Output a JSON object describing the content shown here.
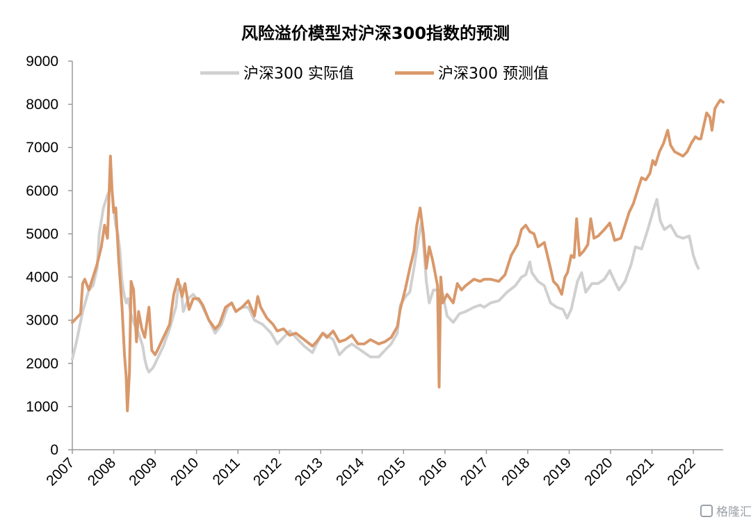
{
  "chart_data": {
    "type": "line",
    "title": "风险溢价模型对沪深300指数的预测",
    "xlabel": "",
    "ylabel": "",
    "x_ticks": [
      "2007",
      "2008",
      "2009",
      "2010",
      "2011",
      "2012",
      "2013",
      "2014",
      "2015",
      "2016",
      "2017",
      "2018",
      "2019",
      "2020",
      "2021",
      "2022"
    ],
    "y_ticks": [
      "0",
      "1000",
      "2000",
      "3000",
      "4000",
      "5000",
      "6000",
      "7000",
      "8000",
      "9000"
    ],
    "ylim": [
      0,
      9000
    ],
    "xlim": [
      2007.0,
      2022.72
    ],
    "grid": false,
    "legend_position": "top",
    "series": [
      {
        "name": "沪深300 实际值",
        "color": "#d0d0d0",
        "points": [
          [
            2007.0,
            2100
          ],
          [
            2007.1,
            2500
          ],
          [
            2007.25,
            3200
          ],
          [
            2007.4,
            3700
          ],
          [
            2007.5,
            3800
          ],
          [
            2007.6,
            4200
          ],
          [
            2007.65,
            5000
          ],
          [
            2007.75,
            5600
          ],
          [
            2007.85,
            5900
          ],
          [
            2007.95,
            6100
          ],
          [
            2008.0,
            5600
          ],
          [
            2008.05,
            5200
          ],
          [
            2008.1,
            5000
          ],
          [
            2008.15,
            4600
          ],
          [
            2008.2,
            3900
          ],
          [
            2008.25,
            3600
          ],
          [
            2008.3,
            3400
          ],
          [
            2008.35,
            3500
          ],
          [
            2008.4,
            3200
          ],
          [
            2008.5,
            2900
          ],
          [
            2008.6,
            2700
          ],
          [
            2008.7,
            2400
          ],
          [
            2008.75,
            2100
          ],
          [
            2008.8,
            1900
          ],
          [
            2008.85,
            1800
          ],
          [
            2008.95,
            1900
          ],
          [
            2009.05,
            2100
          ],
          [
            2009.2,
            2400
          ],
          [
            2009.35,
            2800
          ],
          [
            2009.5,
            3300
          ],
          [
            2009.55,
            3700
          ],
          [
            2009.62,
            3800
          ],
          [
            2009.68,
            3200
          ],
          [
            2009.8,
            3500
          ],
          [
            2009.92,
            3600
          ],
          [
            2010.0,
            3500
          ],
          [
            2010.1,
            3400
          ],
          [
            2010.3,
            3000
          ],
          [
            2010.45,
            2700
          ],
          [
            2010.6,
            2900
          ],
          [
            2010.75,
            3300
          ],
          [
            2010.85,
            3400
          ],
          [
            2010.95,
            3200
          ],
          [
            2011.1,
            3300
          ],
          [
            2011.25,
            3300
          ],
          [
            2011.4,
            3000
          ],
          [
            2011.6,
            2900
          ],
          [
            2011.8,
            2700
          ],
          [
            2011.95,
            2450
          ],
          [
            2012.1,
            2600
          ],
          [
            2012.25,
            2750
          ],
          [
            2012.4,
            2600
          ],
          [
            2012.6,
            2400
          ],
          [
            2012.8,
            2250
          ],
          [
            2012.9,
            2450
          ],
          [
            2013.05,
            2700
          ],
          [
            2013.15,
            2650
          ],
          [
            2013.3,
            2550
          ],
          [
            2013.45,
            2200
          ],
          [
            2013.6,
            2350
          ],
          [
            2013.75,
            2450
          ],
          [
            2013.9,
            2350
          ],
          [
            2014.05,
            2250
          ],
          [
            2014.2,
            2150
          ],
          [
            2014.4,
            2150
          ],
          [
            2014.55,
            2300
          ],
          [
            2014.7,
            2450
          ],
          [
            2014.85,
            2700
          ],
          [
            2014.92,
            3350
          ],
          [
            2015.05,
            3550
          ],
          [
            2015.15,
            3650
          ],
          [
            2015.25,
            4200
          ],
          [
            2015.38,
            5000
          ],
          [
            2015.44,
            5300
          ],
          [
            2015.48,
            4800
          ],
          [
            2015.55,
            3900
          ],
          [
            2015.62,
            3400
          ],
          [
            2015.72,
            3700
          ],
          [
            2015.85,
            3700
          ],
          [
            2015.95,
            3600
          ],
          [
            2016.05,
            3100
          ],
          [
            2016.2,
            2950
          ],
          [
            2016.35,
            3150
          ],
          [
            2016.5,
            3200
          ],
          [
            2016.7,
            3300
          ],
          [
            2016.85,
            3350
          ],
          [
            2016.95,
            3300
          ],
          [
            2017.1,
            3400
          ],
          [
            2017.3,
            3450
          ],
          [
            2017.5,
            3650
          ],
          [
            2017.7,
            3800
          ],
          [
            2017.85,
            4000
          ],
          [
            2017.95,
            4050
          ],
          [
            2018.05,
            4350
          ],
          [
            2018.1,
            4100
          ],
          [
            2018.25,
            3900
          ],
          [
            2018.4,
            3800
          ],
          [
            2018.55,
            3400
          ],
          [
            2018.7,
            3300
          ],
          [
            2018.85,
            3250
          ],
          [
            2018.95,
            3050
          ],
          [
            2019.05,
            3250
          ],
          [
            2019.2,
            3900
          ],
          [
            2019.3,
            4100
          ],
          [
            2019.4,
            3650
          ],
          [
            2019.55,
            3850
          ],
          [
            2019.7,
            3850
          ],
          [
            2019.85,
            3950
          ],
          [
            2019.98,
            4150
          ],
          [
            2020.1,
            3900
          ],
          [
            2020.2,
            3700
          ],
          [
            2020.35,
            3900
          ],
          [
            2020.5,
            4300
          ],
          [
            2020.6,
            4700
          ],
          [
            2020.75,
            4650
          ],
          [
            2020.9,
            5100
          ],
          [
            2021.05,
            5600
          ],
          [
            2021.12,
            5800
          ],
          [
            2021.2,
            5300
          ],
          [
            2021.3,
            5100
          ],
          [
            2021.45,
            5200
          ],
          [
            2021.6,
            4950
          ],
          [
            2021.75,
            4900
          ],
          [
            2021.9,
            4950
          ],
          [
            2022.0,
            4500
          ],
          [
            2022.07,
            4300
          ],
          [
            2022.12,
            4200
          ]
        ]
      },
      {
        "name": "沪深300 预测值",
        "color": "#d9986a",
        "points": [
          [
            2007.0,
            2950
          ],
          [
            2007.1,
            3050
          ],
          [
            2007.2,
            3150
          ],
          [
            2007.25,
            3850
          ],
          [
            2007.3,
            3950
          ],
          [
            2007.4,
            3700
          ],
          [
            2007.5,
            4000
          ],
          [
            2007.6,
            4300
          ],
          [
            2007.7,
            4700
          ],
          [
            2007.78,
            5200
          ],
          [
            2007.85,
            4900
          ],
          [
            2007.92,
            6800
          ],
          [
            2007.96,
            6000
          ],
          [
            2008.0,
            5500
          ],
          [
            2008.05,
            5600
          ],
          [
            2008.12,
            4400
          ],
          [
            2008.2,
            3300
          ],
          [
            2008.26,
            2200
          ],
          [
            2008.3,
            1700
          ],
          [
            2008.33,
            900
          ],
          [
            2008.38,
            1800
          ],
          [
            2008.42,
            3900
          ],
          [
            2008.48,
            3700
          ],
          [
            2008.55,
            2500
          ],
          [
            2008.6,
            3200
          ],
          [
            2008.68,
            2800
          ],
          [
            2008.75,
            2600
          ],
          [
            2008.85,
            3300
          ],
          [
            2008.92,
            2300
          ],
          [
            2009.0,
            2200
          ],
          [
            2009.08,
            2350
          ],
          [
            2009.2,
            2600
          ],
          [
            2009.35,
            2900
          ],
          [
            2009.45,
            3600
          ],
          [
            2009.55,
            3950
          ],
          [
            2009.65,
            3550
          ],
          [
            2009.72,
            3850
          ],
          [
            2009.82,
            3250
          ],
          [
            2009.92,
            3500
          ],
          [
            2010.05,
            3500
          ],
          [
            2010.15,
            3350
          ],
          [
            2010.3,
            3000
          ],
          [
            2010.45,
            2800
          ],
          [
            2010.55,
            2900
          ],
          [
            2010.7,
            3300
          ],
          [
            2010.85,
            3400
          ],
          [
            2010.95,
            3200
          ],
          [
            2011.1,
            3300
          ],
          [
            2011.25,
            3450
          ],
          [
            2011.4,
            3100
          ],
          [
            2011.48,
            3550
          ],
          [
            2011.55,
            3300
          ],
          [
            2011.7,
            3050
          ],
          [
            2011.85,
            2900
          ],
          [
            2011.95,
            2750
          ],
          [
            2012.1,
            2800
          ],
          [
            2012.25,
            2650
          ],
          [
            2012.4,
            2700
          ],
          [
            2012.6,
            2550
          ],
          [
            2012.8,
            2400
          ],
          [
            2012.9,
            2500
          ],
          [
            2013.05,
            2700
          ],
          [
            2013.15,
            2600
          ],
          [
            2013.3,
            2750
          ],
          [
            2013.45,
            2500
          ],
          [
            2013.6,
            2550
          ],
          [
            2013.75,
            2650
          ],
          [
            2013.9,
            2450
          ],
          [
            2014.05,
            2450
          ],
          [
            2014.2,
            2550
          ],
          [
            2014.4,
            2450
          ],
          [
            2014.55,
            2500
          ],
          [
            2014.7,
            2600
          ],
          [
            2014.85,
            2850
          ],
          [
            2014.92,
            3250
          ],
          [
            2015.05,
            3750
          ],
          [
            2015.15,
            4200
          ],
          [
            2015.25,
            4600
          ],
          [
            2015.32,
            5200
          ],
          [
            2015.4,
            5600
          ],
          [
            2015.48,
            5000
          ],
          [
            2015.55,
            4200
          ],
          [
            2015.62,
            4700
          ],
          [
            2015.7,
            4400
          ],
          [
            2015.76,
            4100
          ],
          [
            2015.82,
            3800
          ],
          [
            2015.86,
            1450
          ],
          [
            2015.9,
            4000
          ],
          [
            2015.95,
            3400
          ],
          [
            2016.05,
            3600
          ],
          [
            2016.2,
            3400
          ],
          [
            2016.3,
            3850
          ],
          [
            2016.4,
            3700
          ],
          [
            2016.5,
            3800
          ],
          [
            2016.7,
            3950
          ],
          [
            2016.85,
            3900
          ],
          [
            2016.95,
            3950
          ],
          [
            2017.1,
            3950
          ],
          [
            2017.3,
            3900
          ],
          [
            2017.45,
            4050
          ],
          [
            2017.6,
            4500
          ],
          [
            2017.75,
            4750
          ],
          [
            2017.85,
            5100
          ],
          [
            2017.95,
            5200
          ],
          [
            2018.05,
            5050
          ],
          [
            2018.15,
            5000
          ],
          [
            2018.25,
            4700
          ],
          [
            2018.4,
            4800
          ],
          [
            2018.55,
            4200
          ],
          [
            2018.62,
            3900
          ],
          [
            2018.72,
            3800
          ],
          [
            2018.82,
            3600
          ],
          [
            2018.9,
            4000
          ],
          [
            2018.96,
            4100
          ],
          [
            2019.05,
            4500
          ],
          [
            2019.12,
            4450
          ],
          [
            2019.18,
            5350
          ],
          [
            2019.25,
            4500
          ],
          [
            2019.35,
            4600
          ],
          [
            2019.45,
            4750
          ],
          [
            2019.52,
            5350
          ],
          [
            2019.6,
            4900
          ],
          [
            2019.7,
            4950
          ],
          [
            2019.85,
            5100
          ],
          [
            2019.98,
            5250
          ],
          [
            2020.1,
            4850
          ],
          [
            2020.25,
            4900
          ],
          [
            2020.35,
            5200
          ],
          [
            2020.45,
            5500
          ],
          [
            2020.55,
            5700
          ],
          [
            2020.65,
            6000
          ],
          [
            2020.75,
            6300
          ],
          [
            2020.85,
            6250
          ],
          [
            2020.95,
            6400
          ],
          [
            2021.02,
            6700
          ],
          [
            2021.08,
            6600
          ],
          [
            2021.18,
            6900
          ],
          [
            2021.28,
            7100
          ],
          [
            2021.38,
            7400
          ],
          [
            2021.45,
            7050
          ],
          [
            2021.55,
            6900
          ],
          [
            2021.65,
            6850
          ],
          [
            2021.75,
            6800
          ],
          [
            2021.85,
            6900
          ],
          [
            2021.95,
            7100
          ],
          [
            2022.05,
            7250
          ],
          [
            2022.12,
            7200
          ],
          [
            2022.18,
            7200
          ],
          [
            2022.25,
            7500
          ],
          [
            2022.32,
            7800
          ],
          [
            2022.4,
            7700
          ],
          [
            2022.45,
            7400
          ],
          [
            2022.52,
            7900
          ],
          [
            2022.58,
            8000
          ],
          [
            2022.65,
            8100
          ],
          [
            2022.72,
            8050
          ]
        ]
      }
    ]
  },
  "watermark": {
    "icon": "gelonghui-logo-icon",
    "text": "格隆汇"
  }
}
